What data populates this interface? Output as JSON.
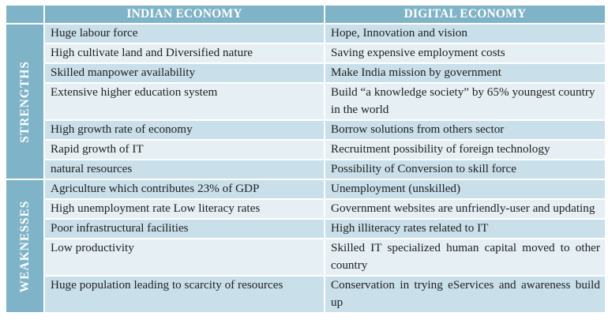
{
  "headers": {
    "left": "INDIAN ECONOMY",
    "right": "DIGITAL ECONOMY"
  },
  "sections": [
    {
      "label": "STRENGTHS",
      "rows": [
        {
          "indian": "Huge labour force",
          "digital": "Hope, Innovation and vision"
        },
        {
          "indian": "High cultivate land  and Diversified nature",
          "digital": "Saving expensive employment costs"
        },
        {
          "indian": "Skilled manpower availability",
          "digital": "Make India mission by government"
        },
        {
          "indian": "Extensive higher education system",
          "digital": "Build “a knowledge society”  by 65% youngest country in the world"
        },
        {
          "indian": "High growth rate of economy",
          "digital": "Borrow solutions from others sector"
        },
        {
          "indian": "Rapid growth of IT",
          "digital": "Recruitment possibility of foreign technology"
        },
        {
          "indian": "natural resources",
          "digital": "Possibility of Conversion to skill force"
        }
      ]
    },
    {
      "label": "WEAKNESSES",
      "rows": [
        {
          "indian": "Agriculture which contributes 23% of GDP",
          "digital": "Unemployment (unskilled)"
        },
        {
          "indian": "High unemployment rate Low literacy rates",
          "digital": "Government websites are unfriendly-user and updating"
        },
        {
          "indian": "Poor infrastructural facilities",
          "digital": "High illiteracy rates related to IT"
        },
        {
          "indian": "Low productivity",
          "digital": "Skilled IT specialized human capital moved to other country"
        },
        {
          "indian": "Huge population leading to scarcity of resources",
          "digital": "Conservation in trying eServices and awareness build up"
        }
      ]
    }
  ],
  "colors": {
    "header_bg": "#7fb3c8",
    "row_dark": "#c9dfe9",
    "row_light": "#e5eff4",
    "header_text": "#ffffff"
  }
}
